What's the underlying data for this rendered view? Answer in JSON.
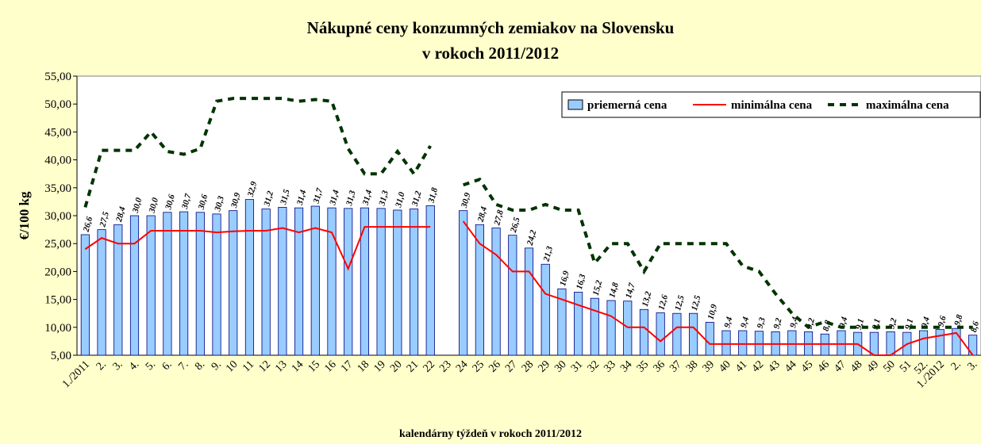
{
  "chart_data": {
    "type": "bar",
    "title": [
      "Nákupné ceny konzumných zemiakov na Slovensku",
      "v rokoch 2011/2012"
    ],
    "x_label": "kalendárny týždeň v rokoch 2011/2012",
    "y_label": "€/100 kg",
    "categories": [
      "1./2011",
      "2.",
      "3.",
      "4.",
      "5.",
      "6.",
      "7.",
      "8.",
      "9.",
      "10",
      "11",
      "12",
      "13",
      "14",
      "15",
      "16",
      "17",
      "18",
      "19",
      "20",
      "21",
      "22",
      "23",
      "24",
      "25",
      "26",
      "27",
      "28",
      "29",
      "30",
      "31",
      "32",
      "33",
      "34",
      "35",
      "36",
      "37",
      "38",
      "39",
      "40",
      "41",
      "42",
      "43",
      "44",
      "45",
      "46",
      "47",
      "48",
      "49",
      "50",
      "51",
      "52.",
      "1./2012",
      "2.",
      "3."
    ],
    "ylim": [
      5,
      55
    ],
    "yticks": [
      {
        "value": 5,
        "label": "5,00"
      },
      {
        "value": 10,
        "label": "10,00"
      },
      {
        "value": 15,
        "label": "15,00"
      },
      {
        "value": 20,
        "label": "20,00"
      },
      {
        "value": 25,
        "label": "25,00"
      },
      {
        "value": 30,
        "label": "30,00"
      },
      {
        "value": 35,
        "label": "35,00"
      },
      {
        "value": 40,
        "label": "40,00"
      },
      {
        "value": 45,
        "label": "45,00"
      },
      {
        "value": 50,
        "label": "50,00"
      },
      {
        "value": 55,
        "label": "55,00"
      }
    ],
    "legend": "top-right",
    "series": [
      {
        "name": "priemerná cena",
        "type": "bar",
        "color": "#99ccff",
        "values": [
          26.6,
          27.5,
          28.4,
          30.0,
          30.0,
          30.6,
          30.7,
          30.6,
          30.3,
          30.9,
          32.9,
          31.2,
          31.5,
          31.4,
          31.7,
          31.4,
          31.3,
          31.4,
          31.3,
          31.0,
          31.2,
          31.8,
          null,
          30.9,
          28.4,
          27.8,
          26.5,
          24.2,
          21.3,
          16.9,
          16.3,
          15.2,
          14.8,
          14.7,
          13.2,
          12.6,
          12.5,
          12.5,
          10.9,
          9.4,
          9.4,
          9.3,
          9.2,
          9.4,
          9.2,
          8.8,
          9.4,
          9.1,
          9.1,
          9.2,
          9.1,
          9.4,
          9.6,
          9.8,
          8.6
        ],
        "value_labels": [
          "26,6",
          "27,5",
          "28,4",
          "30,0",
          "30,0",
          "30,6",
          "30,7",
          "30,6",
          "30,3",
          "30,9",
          "32,9",
          "31,2",
          "31,5",
          "31,4",
          "31,7",
          "31,4",
          "31,3",
          "31,4",
          "31,3",
          "31,0",
          "31,2",
          "31,8",
          null,
          "30,9",
          "28,4",
          "27,8",
          "26,5",
          "24,2",
          "21,3",
          "16,9",
          "16,3",
          "15,2",
          "14,8",
          "14,7",
          "13,2",
          "12,6",
          "12,5",
          "12,5",
          "10,9",
          "9,4",
          "9,4",
          "9,3",
          "9,2",
          "9,4",
          "9,2",
          "8,8",
          "9,4",
          "9,1",
          "9,1",
          "9,2",
          "9,1",
          "9,4",
          "9,6",
          "9,8",
          "8,6"
        ]
      },
      {
        "name": "minimálna cena",
        "type": "line",
        "color": "#ff0000",
        "dashed": false,
        "values": [
          24,
          26,
          25,
          25,
          27.3,
          27.3,
          27.3,
          27.3,
          27,
          27.2,
          27.3,
          27.3,
          27.8,
          27,
          27.8,
          27,
          20.5,
          28,
          28,
          28,
          28,
          28,
          null,
          29,
          25,
          23,
          20,
          20,
          16,
          15,
          14,
          13,
          12,
          10,
          10,
          7.5,
          10,
          10,
          7,
          7,
          7,
          7,
          7,
          7,
          7,
          7,
          7,
          7,
          5,
          5,
          7,
          8,
          8.5,
          9,
          5
        ]
      },
      {
        "name": "maximálna cena",
        "type": "line",
        "color": "#003300",
        "dashed": true,
        "values": [
          31.5,
          41.7,
          41.7,
          41.7,
          45,
          41.5,
          41,
          42,
          50.5,
          51,
          51,
          51,
          51,
          50.5,
          50.8,
          50.5,
          42,
          37.5,
          37.5,
          41.5,
          37.5,
          42.5,
          null,
          35.5,
          36.5,
          32,
          31,
          31,
          32,
          31,
          31,
          21.5,
          25,
          25,
          20,
          25,
          25,
          25,
          25,
          25,
          21,
          20,
          16,
          12.5,
          10,
          11,
          10,
          10,
          10,
          10,
          10,
          10,
          10,
          10,
          10
        ]
      }
    ]
  }
}
